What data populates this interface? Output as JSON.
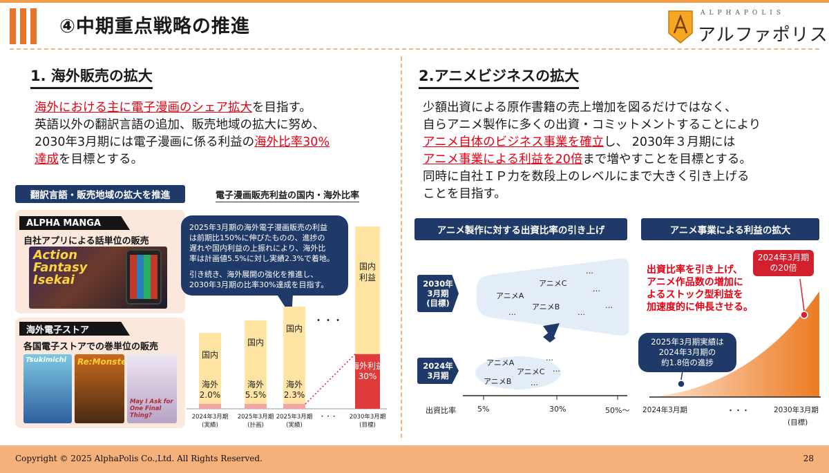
{
  "header": {
    "title": "④中期重点戦略の推進",
    "logo_sub": "ALPHAPOLIS",
    "logo_main": "アルファポリス"
  },
  "left": {
    "section_title": "1. 海外販売の拡大",
    "line1_red": "海外における主に電子漫画のシェア拡大",
    "line1_rest": "を目指す。",
    "line2": "英語以外の翻訳言語の追加、販売地域の拡大に努め、",
    "line3_pre": "2030年3月期には電子漫画に係る利益の",
    "line3_red": "海外比率30%",
    "line4_red": "達成",
    "line4_rest": "を目標とする。",
    "translation_label": "翻訳言語・販売地域の拡大を推進",
    "panel1_tag": "ALPHA MANGA",
    "panel1_text": "自社アプリによる話単位の販売",
    "panel1_art": [
      "Action",
      "Fantasy",
      "Isekai"
    ],
    "panel2_tag": "海外電子ストア",
    "panel2_text": "各国電子ストアでの巻単位の販売",
    "panel2_art_a": "Tsukimichi",
    "panel2_art_b": "Re:Monster",
    "panel2_art_c": "May I Ask for One Final Thing?",
    "bubble": {
      "p1": [
        "2025年3月期の海外電子漫画販売の利益",
        "は前期比150%に伸びたものの、進捗の",
        "遅れや国内利益の上振れにより、海外比",
        "率は計画値5.5%に対し実績2.3%で着地。"
      ],
      "p2": [
        "引き続き、海外展開の強化を推進し、",
        "2030年3月期の比率30%達成を目指す。"
      ]
    }
  },
  "chart_data": {
    "type": "bar",
    "title": "電子漫画販売利益の国内・海外比率",
    "categories": [
      "2024年3月期 (実績)",
      "2025年3月期 (計画)",
      "2025年3月期 (実績)",
      "・・・",
      "2030年3月期 (目標)"
    ],
    "series": [
      {
        "name": "国内",
        "values": [
          98.0,
          94.5,
          97.7,
          null,
          70
        ]
      },
      {
        "name": "海外",
        "values": [
          2.0,
          5.5,
          2.3,
          null,
          30
        ]
      }
    ],
    "bar_labels": {
      "domestic": [
        "国内",
        "国内",
        "国内",
        "",
        "国内利益"
      ],
      "overseas": [
        "海外\n2.0%",
        "海外\n5.5%",
        "海外\n2.3%",
        "",
        "海外利益\n30%"
      ]
    },
    "x_ticks": [
      [
        "2024年3月期",
        "(実績)"
      ],
      [
        "2025年3月期",
        "(計画)"
      ],
      [
        "2025年3月期",
        "(実績)"
      ],
      [
        "・・・",
        ""
      ],
      [
        "2030年3月期",
        "(目標)"
      ]
    ],
    "ellipsis": "・・・",
    "colors": {
      "domestic": "#ffe4a3",
      "overseas_small": "#f4a6a6",
      "overseas_target": "#e03b3b"
    }
  },
  "right": {
    "section_title": "2.アニメビジネスの拡大",
    "line1": "少額出資による原作書籍の売上増加を図るだけではなく、",
    "line2": "自らアニメ製作に多くの出資・コミットメントすることにより",
    "line3_red": "アニメ自体のビジネス事業を確立",
    "line3_rest": "し、 2030年３月期には",
    "line4_red": "アニメ事業による利益を20倍",
    "line4_rest": "まで増やすことを目標とする。",
    "line5": "同時に自社ＩＰ力を数段上のレベルにまで大きく引き上げる",
    "line6": "ことを目指す。",
    "label_left": "アニメ製作に対する出資比率の引き上げ",
    "label_right": "アニメ事業による利益の拡大",
    "target_tag": [
      "2030年",
      "3月期",
      "(目標)"
    ],
    "current_tag": [
      "2024年",
      "3月期"
    ],
    "upper_items": [
      "アニメC",
      "アニメA",
      "アニメB",
      "…",
      "…",
      "…",
      "…",
      "…"
    ],
    "lower_items": [
      "アニメA",
      "アニメC",
      "アニメB",
      "…",
      "…",
      "…"
    ],
    "axis_title": "出資比率",
    "axis_ticks": [
      "5%",
      "30%",
      "50%〜"
    ],
    "red_note": [
      "出資比率を引き上げ、",
      "アニメ作品数の増加に",
      "よるストック型利益を",
      "加速度的に伸長させる。"
    ],
    "red_badge": [
      "2024年3月期",
      "の20倍"
    ],
    "navy_badge": [
      "2025年3月期実績は",
      "2024年3月期の",
      "約1.8倍の進捗"
    ],
    "profit_x": [
      "2024年3月期",
      "・・・",
      "2030年3月期",
      "(目標)"
    ],
    "colors": {
      "navy": "#1f3a68",
      "red": "#e60012",
      "orange": "#ec7a22",
      "light_blue": "#e3edf8"
    }
  },
  "footer": {
    "copyright": "Copyright © 2025 AlphaPolis Co.,Ltd.  All Rights Reserved.",
    "page": "28"
  }
}
